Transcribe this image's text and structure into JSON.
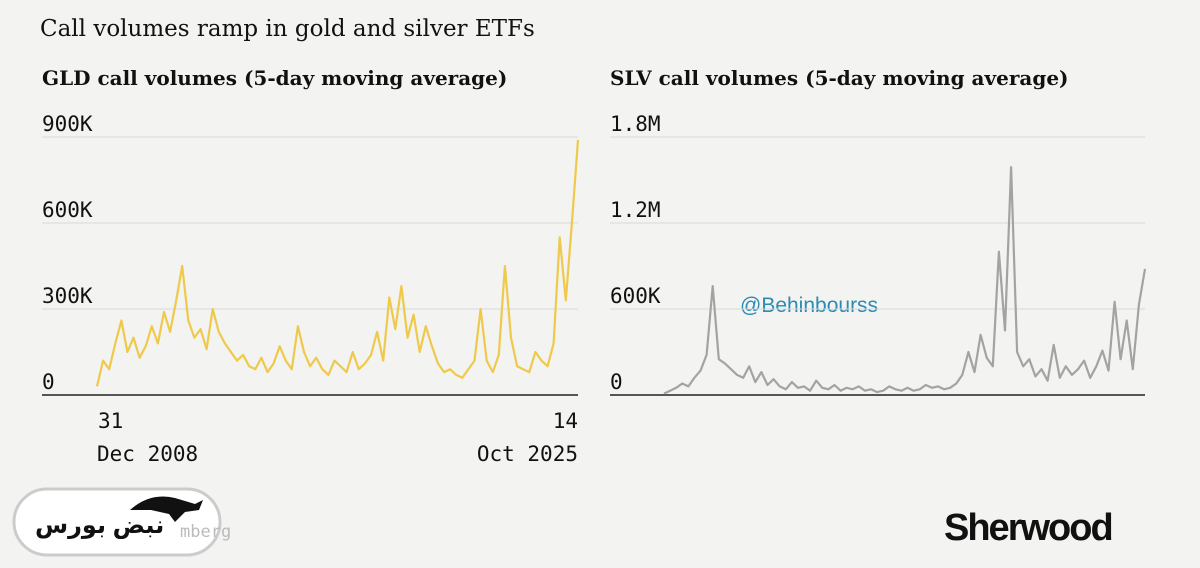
{
  "title": "Call volumes ramp in gold and silver ETFs",
  "chart_data": [
    {
      "type": "line",
      "title": "GLD call volumes (5-day moving average)",
      "color": "#efc94c",
      "categories": [
        "31 Dec 2008",
        null,
        null,
        null,
        null,
        null,
        null,
        null,
        null,
        null,
        null,
        null,
        null,
        null,
        null,
        null,
        null,
        null,
        null,
        null,
        null,
        null,
        null,
        null,
        null,
        null,
        null,
        null,
        null,
        null,
        null,
        null,
        null,
        null,
        null,
        null,
        null,
        null,
        null,
        null,
        null,
        null,
        null,
        null,
        null,
        null,
        null,
        null,
        null,
        null,
        null,
        null,
        null,
        null,
        null,
        null,
        null,
        null,
        null,
        null,
        null,
        null,
        null,
        null,
        null,
        null,
        null,
        null,
        null,
        null,
        null,
        null,
        null,
        null,
        null,
        null,
        null,
        null,
        null,
        "14 Oct 2025"
      ],
      "values": [
        30000,
        120000,
        90000,
        180000,
        260000,
        150000,
        200000,
        130000,
        170000,
        240000,
        180000,
        290000,
        220000,
        330000,
        450000,
        260000,
        200000,
        230000,
        160000,
        300000,
        220000,
        180000,
        150000,
        120000,
        140000,
        100000,
        90000,
        130000,
        80000,
        110000,
        170000,
        120000,
        90000,
        240000,
        150000,
        100000,
        130000,
        90000,
        70000,
        120000,
        100000,
        80000,
        150000,
        90000,
        110000,
        140000,
        220000,
        120000,
        340000,
        230000,
        380000,
        200000,
        280000,
        150000,
        240000,
        170000,
        110000,
        80000,
        90000,
        70000,
        60000,
        90000,
        120000,
        300000,
        120000,
        80000,
        140000,
        450000,
        200000,
        100000,
        90000,
        80000,
        150000,
        120000,
        100000,
        180000,
        550000,
        330000,
        600000,
        890000
      ],
      "ylim": [
        0,
        900000
      ],
      "yticks": [
        0,
        {
          "value": 300000,
          "label": "300K"
        },
        {
          "value": 600000,
          "label": "600K"
        },
        {
          "value": 900000,
          "label": "900K"
        }
      ],
      "grid": true
    },
    {
      "type": "line",
      "title": "SLV call volumes (5-day moving average)",
      "color": "#a3a3a3",
      "values": [
        10000,
        30000,
        50000,
        80000,
        60000,
        120000,
        170000,
        280000,
        760000,
        250000,
        220000,
        180000,
        140000,
        120000,
        200000,
        90000,
        160000,
        70000,
        110000,
        60000,
        40000,
        90000,
        50000,
        60000,
        30000,
        100000,
        50000,
        40000,
        70000,
        30000,
        50000,
        40000,
        60000,
        30000,
        40000,
        20000,
        30000,
        60000,
        40000,
        30000,
        50000,
        30000,
        40000,
        70000,
        50000,
        60000,
        40000,
        50000,
        80000,
        140000,
        300000,
        160000,
        420000,
        260000,
        200000,
        1000000,
        450000,
        1590000,
        300000,
        200000,
        250000,
        130000,
        180000,
        100000,
        350000,
        120000,
        200000,
        140000,
        180000,
        240000,
        120000,
        200000,
        310000,
        170000,
        650000,
        250000,
        520000,
        180000,
        630000,
        880000
      ],
      "ylim": [
        0,
        1800000
      ],
      "yticks": [
        0,
        {
          "value": 600000,
          "label": "600K"
        },
        {
          "value": 1200000,
          "label": "1.2M"
        },
        {
          "value": 1800000,
          "label": "1.8M"
        }
      ],
      "grid": true
    }
  ],
  "watermark": "@Behinbourss",
  "brand": "Sherwood",
  "logo_text": "نبض بورس",
  "source_fragment": "mberg"
}
